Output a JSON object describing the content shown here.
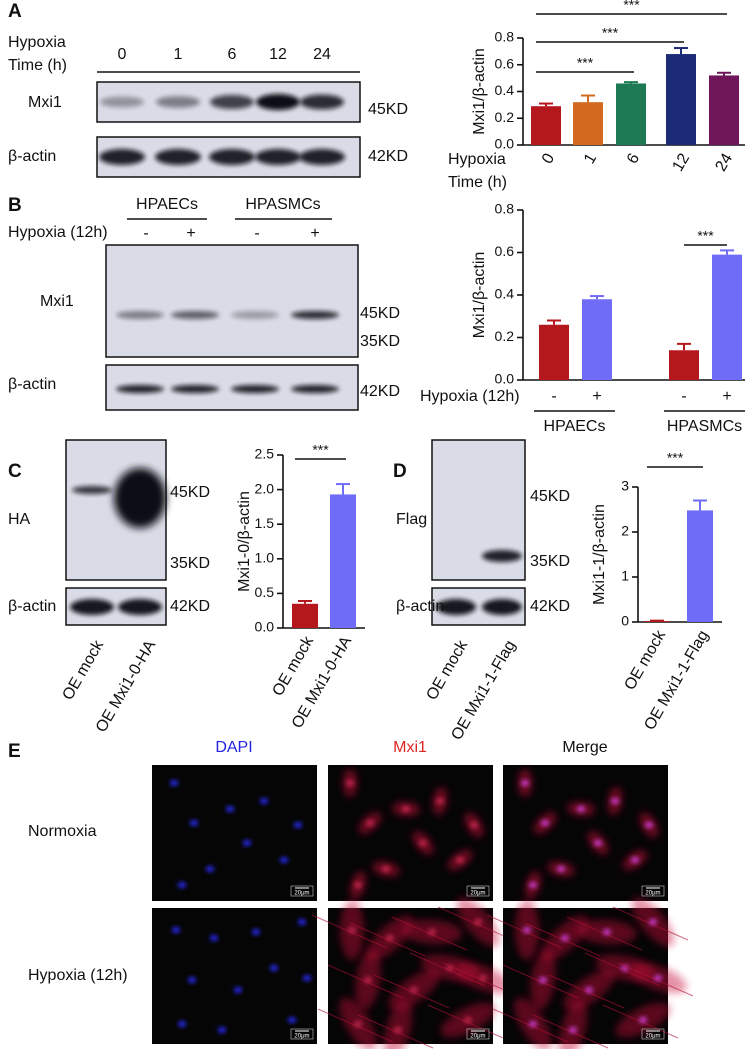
{
  "panel_labels": [
    "A",
    "B",
    "C",
    "D",
    "E"
  ],
  "blots": {
    "A": {
      "row_title": [
        "Hypoxia",
        "Time (h)"
      ],
      "lanes": [
        "0",
        "1",
        "6",
        "12",
        "24"
      ],
      "rows": [
        {
          "label": "Mxi1",
          "sizes": [
            "45KD"
          ]
        },
        {
          "label": "β-actin",
          "sizes": [
            "42KD"
          ]
        }
      ]
    },
    "B": {
      "groups": [
        "HPAECs",
        "HPASMCs"
      ],
      "condition": "Hypoxia (12h)",
      "lanes": [
        "-",
        "+",
        "-",
        "+"
      ],
      "rows": [
        {
          "label": "Mxi1",
          "sizes": [
            "45KD",
            "35KD"
          ]
        },
        {
          "label": "β-actin",
          "sizes": [
            "42KD"
          ]
        }
      ]
    },
    "C": {
      "lanes": [
        "OE mock",
        "OE Mxi1-0-HA"
      ],
      "rows": [
        {
          "label": "HA",
          "sizes": [
            "45KD",
            "35KD"
          ]
        },
        {
          "label": "β-actin",
          "sizes": [
            "42KD"
          ]
        }
      ]
    },
    "D": {
      "lanes": [
        "OE mock",
        "OE Mxi1-1-Flag"
      ],
      "rows": [
        {
          "label": "Flag",
          "sizes": [
            "45KD",
            "35KD"
          ]
        },
        {
          "label": "β-actin",
          "sizes": [
            "42KD"
          ]
        }
      ]
    }
  },
  "chart_data": [
    {
      "type": "bar",
      "ylabel": "Mxi1/β-actin",
      "xlabel": [
        "Hypoxia",
        "Time (h)"
      ],
      "categories": [
        "0",
        "1",
        "6",
        "12",
        "24"
      ],
      "values": [
        0.29,
        0.32,
        0.46,
        0.68,
        0.52
      ],
      "errors": [
        0.02,
        0.05,
        0.01,
        0.045,
        0.02
      ],
      "colors": [
        "#b5181c",
        "#d2691e",
        "#1d7a55",
        "#1c2a78",
        "#6e1657"
      ],
      "ylim": [
        0,
        0.8
      ],
      "yticks": [
        {
          "value": 0,
          "label": "0.0"
        },
        0.2,
        0.4,
        0.6,
        0.8
      ],
      "significance": [
        {
          "label": "***",
          "between": [
            "0",
            "6"
          ]
        },
        {
          "label": "***",
          "between": [
            "0",
            "12"
          ]
        },
        {
          "label": "***",
          "between": [
            "0",
            "24"
          ]
        }
      ]
    },
    {
      "type": "grouped-bar",
      "ylabel": "Mxi1/β-actin",
      "xlabel": "Hypoxia (12h)",
      "categories": [
        "HPAECs",
        "HPASMCs"
      ],
      "series": [
        {
          "name": "-",
          "color": "#b5181c",
          "values": [
            0.26,
            0.14
          ],
          "errors": [
            0.02,
            0.03
          ]
        },
        {
          "name": "+",
          "color": "#6f6cf7",
          "values": [
            0.38,
            0.59
          ],
          "errors": [
            0.015,
            0.02
          ]
        }
      ],
      "ylim": [
        0,
        0.8
      ],
      "yticks": [
        {
          "value": 0,
          "label": "0.0"
        },
        0.2,
        0.4,
        0.6,
        0.8
      ],
      "significance": [
        {
          "label": "***",
          "category": "HPASMCs"
        }
      ]
    },
    {
      "type": "bar",
      "ylabel": "Mxi1-0/β-actin",
      "categories": [
        "OE mock",
        "OE Mxi1-0-HA"
      ],
      "values": [
        0.35,
        1.93
      ],
      "errors": [
        0.04,
        0.15
      ],
      "colors": [
        "#b5181c",
        "#6f6cf7"
      ],
      "ylim": [
        0,
        2.5
      ],
      "yticks": [
        {
          "value": 0,
          "label": "0.0"
        },
        0.5,
        {
          "value": 1,
          "label": "1.0"
        },
        1.5,
        {
          "value": 2,
          "label": "2.0"
        },
        2.5
      ],
      "significance": [
        {
          "label": "***",
          "between": [
            "OE mock",
            "OE Mxi1-0-HA"
          ]
        }
      ]
    },
    {
      "type": "bar",
      "ylabel": "Mxi1-1/β-actin",
      "categories": [
        "OE mock",
        "OE Mxi1-1-Flag"
      ],
      "values": [
        0.02,
        2.48
      ],
      "errors": [
        0.01,
        0.22
      ],
      "colors": [
        "#b5181c",
        "#6f6cf7"
      ],
      "ylim": [
        0,
        3
      ],
      "yticks": [
        0,
        1,
        2,
        3
      ],
      "significance": [
        {
          "label": "***",
          "between": [
            "OE mock",
            "OE Mxi1-1-Flag"
          ]
        }
      ]
    }
  ],
  "images": {
    "columns": [
      "DAPI",
      "Mxi1",
      "Merge"
    ],
    "rows": [
      "Normoxia",
      "Hypoxia (12h)"
    ],
    "scale_bar": "20μm"
  }
}
